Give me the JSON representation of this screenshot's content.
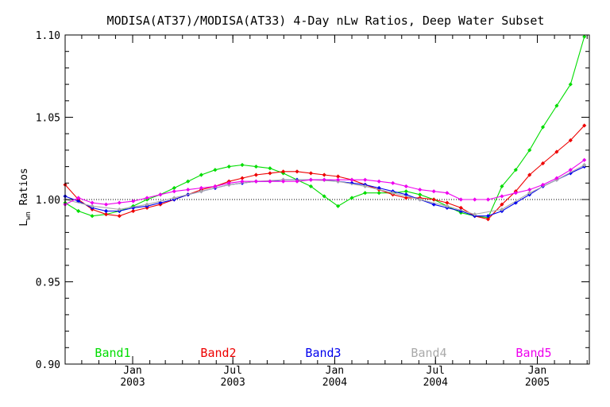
{
  "chart_data": {
    "type": "line",
    "title": "MODISA(AT37)/MODISA(AT33) 4-Day nLw Ratios, Deep Water Subset",
    "ylabel_main": "L",
    "ylabel_sub": "wn",
    "ylabel_rest": " Ratios",
    "xlabel": "",
    "ylim": [
      0.9,
      1.1
    ],
    "xlim": [
      "2002-09-01",
      "2005-04-05"
    ],
    "grid": false,
    "reference_line": 1.0,
    "legend_position": "bottom",
    "y_ticks": [
      "0.90",
      "0.95",
      "1.00",
      "1.05",
      "1.10"
    ],
    "x_ticks": [
      {
        "date": "2003-01-01",
        "top": "Jan",
        "bottom": "2003"
      },
      {
        "date": "2003-07-01",
        "top": "Jul",
        "bottom": "2003"
      },
      {
        "date": "2004-01-01",
        "top": "Jan",
        "bottom": "2004"
      },
      {
        "date": "2004-07-01",
        "top": "Jul",
        "bottom": "2004"
      },
      {
        "date": "2005-01-01",
        "top": "Jan",
        "bottom": "2005"
      }
    ],
    "series": [
      {
        "name": "Band1",
        "color": "#00dd00",
        "x": [
          "2002-09-01",
          "2002-09-25",
          "2002-10-20",
          "2002-11-14",
          "2002-12-08",
          "2003-01-02",
          "2003-01-27",
          "2003-02-20",
          "2003-03-17",
          "2003-04-11",
          "2003-05-05",
          "2003-05-30",
          "2003-06-24",
          "2003-07-18",
          "2003-08-12",
          "2003-09-06",
          "2003-09-30",
          "2003-10-25",
          "2003-11-19",
          "2003-12-13",
          "2004-01-07",
          "2004-02-01",
          "2004-02-25",
          "2004-03-21",
          "2004-04-15",
          "2004-05-09",
          "2004-06-03",
          "2004-06-28",
          "2004-07-22",
          "2004-08-16",
          "2004-09-10",
          "2004-10-04",
          "2004-10-29",
          "2004-11-23",
          "2004-12-18",
          "2005-01-11",
          "2005-02-05",
          "2005-03-02",
          "2005-03-27"
        ],
        "values": [
          0.998,
          0.993,
          0.99,
          0.991,
          0.993,
          0.996,
          1.0,
          1.003,
          1.007,
          1.011,
          1.015,
          1.018,
          1.02,
          1.021,
          1.02,
          1.019,
          1.016,
          1.012,
          1.008,
          1.002,
          0.996,
          1.001,
          1.004,
          1.004,
          1.004,
          1.005,
          1.003,
          1.0,
          0.996,
          0.992,
          0.99,
          0.989,
          1.008,
          1.018,
          1.03,
          1.044,
          1.057,
          1.07,
          1.099
        ]
      },
      {
        "name": "Band2",
        "color": "#ee0000",
        "x": [
          "2002-09-01",
          "2002-09-25",
          "2002-10-20",
          "2002-11-14",
          "2002-12-08",
          "2003-01-02",
          "2003-01-27",
          "2003-02-20",
          "2003-03-17",
          "2003-04-11",
          "2003-05-05",
          "2003-05-30",
          "2003-06-24",
          "2003-07-18",
          "2003-08-12",
          "2003-09-06",
          "2003-09-30",
          "2003-10-25",
          "2003-11-19",
          "2003-12-13",
          "2004-01-07",
          "2004-02-01",
          "2004-02-25",
          "2004-03-21",
          "2004-04-15",
          "2004-05-09",
          "2004-06-03",
          "2004-06-28",
          "2004-07-22",
          "2004-08-16",
          "2004-09-10",
          "2004-10-04",
          "2004-10-29",
          "2004-11-23",
          "2004-12-18",
          "2005-01-11",
          "2005-02-05",
          "2005-03-02",
          "2005-03-27"
        ],
        "values": [
          1.009,
          1.0,
          0.994,
          0.991,
          0.99,
          0.993,
          0.995,
          0.997,
          1.0,
          1.003,
          1.006,
          1.008,
          1.011,
          1.013,
          1.015,
          1.016,
          1.017,
          1.017,
          1.016,
          1.015,
          1.014,
          1.012,
          1.009,
          1.006,
          1.003,
          1.001,
          1.001,
          1.0,
          0.998,
          0.995,
          0.99,
          0.988,
          0.997,
          1.005,
          1.015,
          1.022,
          1.029,
          1.036,
          1.045
        ]
      },
      {
        "name": "Band3",
        "color": "#0000ee",
        "x": [
          "2002-09-01",
          "2002-09-25",
          "2002-10-20",
          "2002-11-14",
          "2002-12-08",
          "2003-01-02",
          "2003-01-27",
          "2003-02-20",
          "2003-03-17",
          "2003-04-11",
          "2003-05-05",
          "2003-05-30",
          "2003-06-24",
          "2003-07-18",
          "2003-08-12",
          "2003-09-06",
          "2003-09-30",
          "2003-10-25",
          "2003-11-19",
          "2003-12-13",
          "2004-01-07",
          "2004-02-01",
          "2004-02-25",
          "2004-03-21",
          "2004-04-15",
          "2004-05-09",
          "2004-06-03",
          "2004-06-28",
          "2004-07-22",
          "2004-08-16",
          "2004-09-10",
          "2004-10-04",
          "2004-10-29",
          "2004-11-23",
          "2004-12-18",
          "2005-01-11",
          "2005-02-05",
          "2005-03-02",
          "2005-03-27"
        ],
        "values": [
          1.002,
          0.999,
          0.995,
          0.993,
          0.993,
          0.995,
          0.996,
          0.998,
          1.0,
          1.003,
          1.005,
          1.007,
          1.009,
          1.01,
          1.011,
          1.011,
          1.012,
          1.012,
          1.012,
          1.012,
          1.011,
          1.01,
          1.009,
          1.007,
          1.005,
          1.003,
          1.0,
          0.997,
          0.995,
          0.993,
          0.99,
          0.99,
          0.993,
          0.998,
          1.003,
          1.008,
          1.012,
          1.016,
          1.02
        ]
      },
      {
        "name": "Band4",
        "color": "#aaaaaa",
        "x": [
          "2002-09-01",
          "2002-10-20",
          "2002-12-08",
          "2003-01-27",
          "2003-03-17",
          "2003-05-05",
          "2003-06-24",
          "2003-08-12",
          "2003-09-30",
          "2003-11-19",
          "2004-01-07",
          "2004-02-25",
          "2004-04-15",
          "2004-06-03",
          "2004-07-22",
          "2004-09-10",
          "2004-10-29",
          "2004-12-18",
          "2005-02-05",
          "2005-03-27"
        ],
        "values": [
          1.0,
          0.996,
          0.994,
          0.997,
          1.001,
          1.005,
          1.009,
          1.011,
          1.012,
          1.012,
          1.011,
          1.008,
          1.004,
          1.0,
          0.996,
          0.991,
          0.994,
          1.004,
          1.012,
          1.021
        ]
      },
      {
        "name": "Band5",
        "color": "#ee00ee",
        "x": [
          "2002-09-01",
          "2002-09-25",
          "2002-10-20",
          "2002-11-14",
          "2002-12-08",
          "2003-01-02",
          "2003-01-27",
          "2003-02-20",
          "2003-03-17",
          "2003-04-11",
          "2003-05-05",
          "2003-05-30",
          "2003-06-24",
          "2003-07-18",
          "2003-08-12",
          "2003-09-06",
          "2003-09-30",
          "2003-10-25",
          "2003-11-19",
          "2003-12-13",
          "2004-01-07",
          "2004-02-01",
          "2004-02-25",
          "2004-03-21",
          "2004-04-15",
          "2004-05-09",
          "2004-06-03",
          "2004-06-28",
          "2004-07-22",
          "2004-08-16",
          "2004-09-10",
          "2004-10-04",
          "2004-10-29",
          "2004-11-23",
          "2004-12-18",
          "2005-01-11",
          "2005-02-05",
          "2005-03-02",
          "2005-03-27"
        ],
        "values": [
          0.997,
          1.001,
          0.998,
          0.997,
          0.998,
          0.999,
          1.001,
          1.003,
          1.005,
          1.006,
          1.007,
          1.008,
          1.01,
          1.011,
          1.011,
          1.011,
          1.011,
          1.011,
          1.012,
          1.012,
          1.012,
          1.012,
          1.012,
          1.011,
          1.01,
          1.008,
          1.006,
          1.005,
          1.004,
          1.0,
          1.0,
          1.0,
          1.002,
          1.004,
          1.006,
          1.009,
          1.013,
          1.018,
          1.024
        ]
      }
    ]
  }
}
